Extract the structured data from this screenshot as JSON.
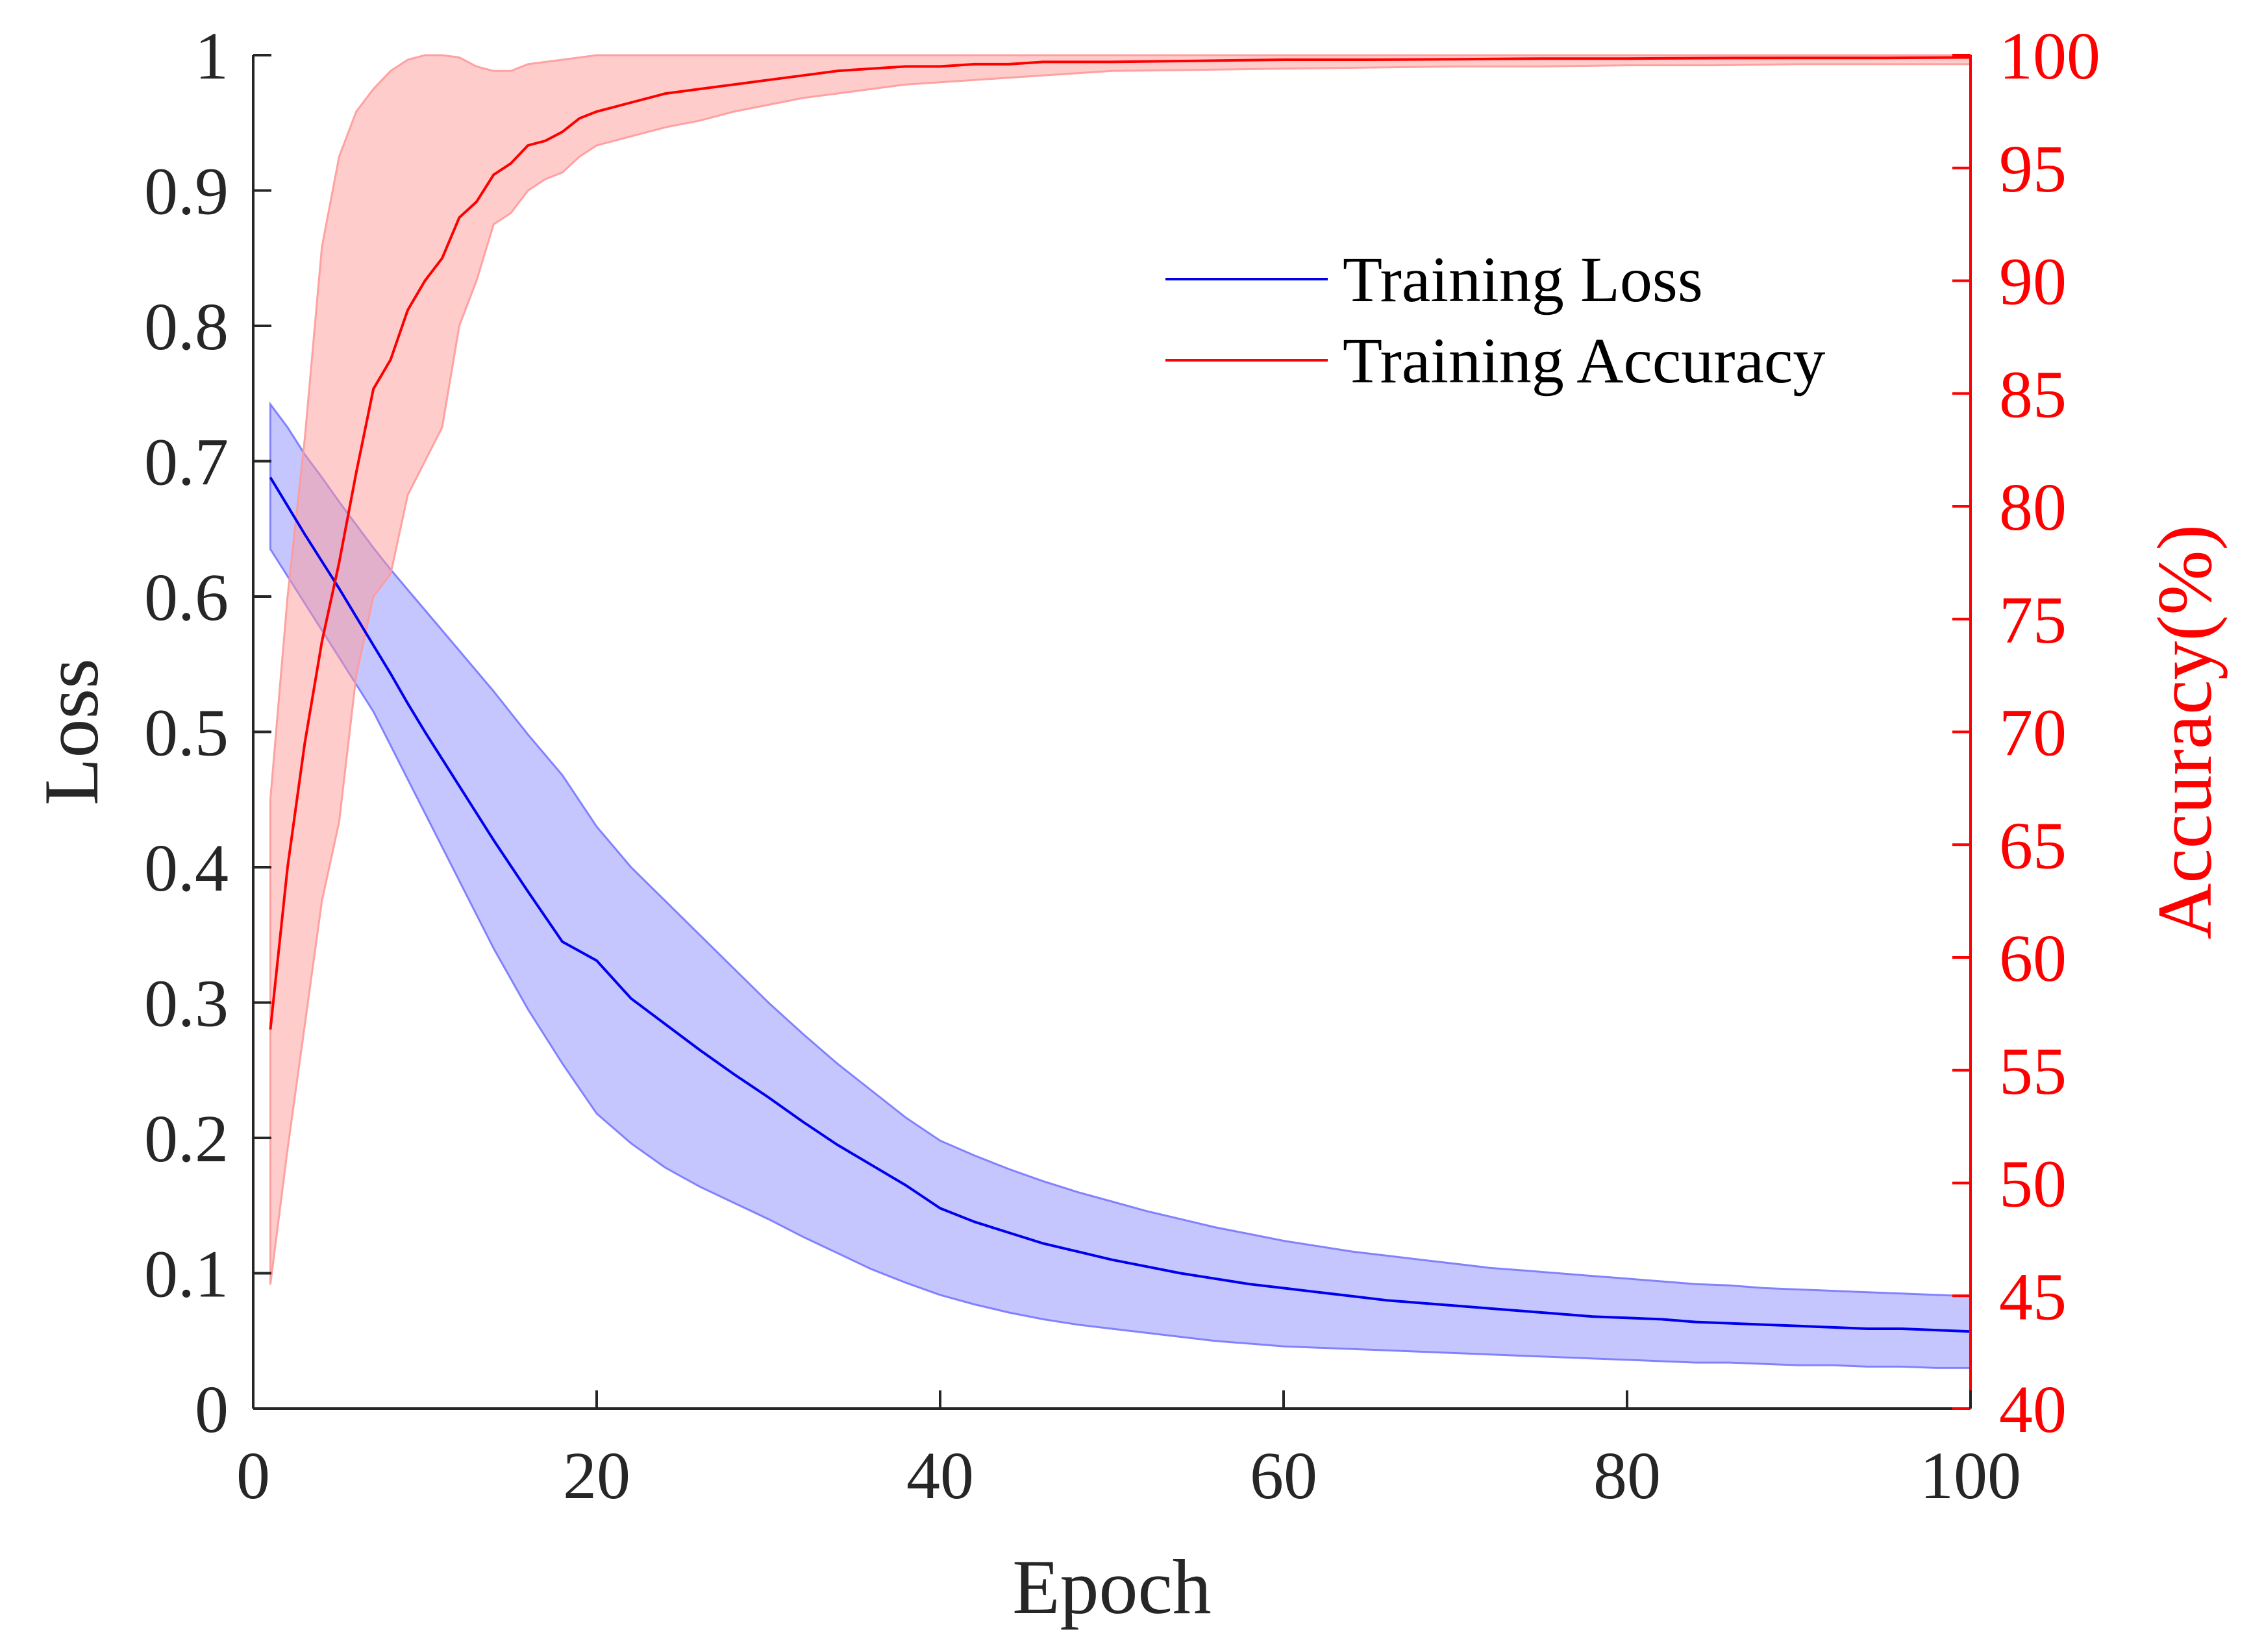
{
  "chart_data": {
    "type": "line",
    "title": "",
    "xlabel": "Epoch",
    "ylabel_left": "Loss",
    "ylabel_right": "Accuracy(%)",
    "xlim": [
      0,
      100
    ],
    "ylim_left": [
      0,
      1
    ],
    "ylim_right": [
      40,
      100
    ],
    "xticks": [
      0,
      20,
      40,
      60,
      80,
      100
    ],
    "xtick_labels": [
      "0",
      "20",
      "40",
      "60",
      "80",
      "100"
    ],
    "yticks_left": [
      0,
      0.1,
      0.2,
      0.3,
      0.4,
      0.5,
      0.6,
      0.7,
      0.8,
      0.9,
      1
    ],
    "ytick_labels_left": [
      "0",
      "0.1",
      "0.2",
      "0.3",
      "0.4",
      "0.5",
      "0.6",
      "0.7",
      "0.8",
      "0.9",
      "1"
    ],
    "yticks_right": [
      40,
      45,
      50,
      55,
      60,
      65,
      70,
      75,
      80,
      85,
      90,
      95,
      100
    ],
    "ytick_labels_right": [
      "40",
      "45",
      "50",
      "55",
      "60",
      "65",
      "70",
      "75",
      "80",
      "85",
      "90",
      "95",
      "100"
    ],
    "grid": false,
    "legend_position": "top-right",
    "series": [
      {
        "name": "Training Loss",
        "axis": "left",
        "color": "#0000ee",
        "band_color": "#7777ff",
        "x": [
          1,
          2,
          3,
          4,
          5,
          6,
          7,
          8,
          9,
          10,
          12,
          14,
          16,
          18,
          20,
          22,
          24,
          26,
          28,
          30,
          32,
          34,
          36,
          38,
          40,
          42,
          44,
          46,
          48,
          50,
          52,
          54,
          56,
          58,
          60,
          62,
          64,
          66,
          68,
          70,
          72,
          74,
          76,
          78,
          80,
          82,
          84,
          86,
          88,
          90,
          92,
          94,
          96,
          98,
          100
        ],
        "mean": [
          0.688,
          0.667,
          0.646,
          0.626,
          0.606,
          0.585,
          0.564,
          0.543,
          0.521,
          0.5,
          0.46,
          0.42,
          0.382,
          0.345,
          0.331,
          0.303,
          0.284,
          0.265,
          0.247,
          0.23,
          0.212,
          0.195,
          0.18,
          0.165,
          0.148,
          0.138,
          0.13,
          0.122,
          0.116,
          0.11,
          0.105,
          0.1,
          0.096,
          0.092,
          0.089,
          0.086,
          0.083,
          0.08,
          0.078,
          0.076,
          0.074,
          0.072,
          0.07,
          0.068,
          0.067,
          0.066,
          0.064,
          0.063,
          0.062,
          0.061,
          0.06,
          0.059,
          0.059,
          0.058,
          0.057
        ],
        "upper": [
          0.742,
          0.725,
          0.705,
          0.688,
          0.67,
          0.653,
          0.636,
          0.62,
          0.605,
          0.59,
          0.56,
          0.53,
          0.498,
          0.468,
          0.43,
          0.4,
          0.375,
          0.35,
          0.325,
          0.3,
          0.277,
          0.255,
          0.235,
          0.215,
          0.198,
          0.187,
          0.177,
          0.168,
          0.16,
          0.153,
          0.146,
          0.14,
          0.134,
          0.129,
          0.124,
          0.12,
          0.116,
          0.113,
          0.11,
          0.107,
          0.104,
          0.102,
          0.1,
          0.098,
          0.096,
          0.094,
          0.092,
          0.091,
          0.089,
          0.088,
          0.087,
          0.086,
          0.085,
          0.084,
          0.083
        ],
        "lower": [
          0.635,
          0.615,
          0.595,
          0.575,
          0.555,
          0.535,
          0.515,
          0.49,
          0.465,
          0.44,
          0.39,
          0.34,
          0.295,
          0.255,
          0.218,
          0.196,
          0.178,
          0.164,
          0.152,
          0.14,
          0.127,
          0.115,
          0.103,
          0.093,
          0.084,
          0.077,
          0.071,
          0.066,
          0.062,
          0.059,
          0.056,
          0.053,
          0.05,
          0.048,
          0.046,
          0.045,
          0.044,
          0.043,
          0.042,
          0.041,
          0.04,
          0.039,
          0.038,
          0.037,
          0.036,
          0.035,
          0.034,
          0.034,
          0.033,
          0.032,
          0.032,
          0.031,
          0.031,
          0.03,
          0.03
        ]
      },
      {
        "name": "Training Accuracy",
        "axis": "right",
        "color": "#ff0000",
        "band_color": "#ff9999",
        "x": [
          1,
          2,
          3,
          4,
          5,
          6,
          7,
          8,
          9,
          10,
          11,
          12,
          13,
          14,
          15,
          16,
          17,
          18,
          19,
          20,
          22,
          24,
          26,
          28,
          30,
          32,
          34,
          36,
          38,
          40,
          42,
          44,
          46,
          48,
          50,
          55,
          60,
          65,
          70,
          75,
          80,
          85,
          90,
          95,
          100
        ],
        "mean": [
          56.8,
          64,
          69.5,
          74,
          77.5,
          81.5,
          85.2,
          86.5,
          88.7,
          90,
          91,
          92.8,
          93.5,
          94.7,
          95.2,
          96,
          96.2,
          96.6,
          97.2,
          97.5,
          97.9,
          98.3,
          98.5,
          98.7,
          98.9,
          99.1,
          99.3,
          99.4,
          99.5,
          99.5,
          99.6,
          99.6,
          99.7,
          99.7,
          99.7,
          99.75,
          99.8,
          99.8,
          99.82,
          99.85,
          99.85,
          99.87,
          99.88,
          99.88,
          99.9
        ],
        "upper": [
          67,
          76,
          83,
          91.5,
          95.5,
          97.5,
          98.5,
          99.3,
          99.8,
          100,
          100,
          99.9,
          99.5,
          99.3,
          99.3,
          99.6,
          99.7,
          99.8,
          99.9,
          100,
          100,
          100,
          100,
          100,
          100,
          100,
          100,
          100,
          100,
          100,
          100,
          100,
          100,
          100,
          100,
          100,
          100,
          100,
          100,
          100,
          100,
          100,
          100,
          100,
          100
        ],
        "lower": [
          45.5,
          51.5,
          57,
          62.5,
          66,
          72.5,
          76,
          77,
          80.5,
          82,
          83.5,
          88,
          90,
          92.5,
          93,
          94,
          94.5,
          94.8,
          95.5,
          96,
          96.4,
          96.8,
          97.1,
          97.5,
          97.8,
          98.1,
          98.3,
          98.5,
          98.7,
          98.8,
          98.9,
          99,
          99.1,
          99.2,
          99.3,
          99.35,
          99.4,
          99.45,
          99.5,
          99.5,
          99.55,
          99.55,
          99.6,
          99.6,
          99.6
        ]
      }
    ]
  }
}
